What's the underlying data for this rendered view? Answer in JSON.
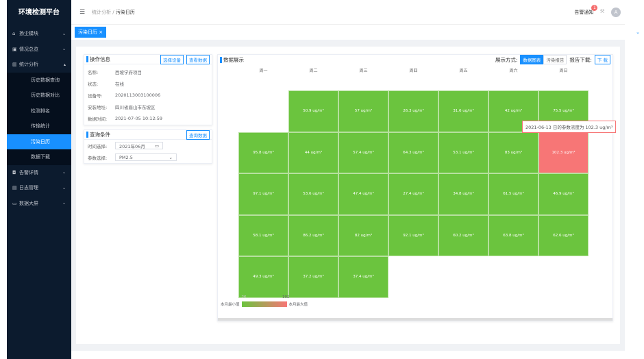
{
  "app": {
    "title": "环境检测平台"
  },
  "sidebar": {
    "items": [
      {
        "label": "扬尘模块",
        "icon": "home-icon"
      },
      {
        "label": "情况总览",
        "icon": "monitor-icon"
      },
      {
        "label": "统计分析",
        "icon": "chart-icon",
        "expanded": true,
        "children": [
          {
            "label": "历史数据查询"
          },
          {
            "label": "历史数据对比"
          },
          {
            "label": "检测排名"
          },
          {
            "label": "传输统计"
          },
          {
            "label": "污染日历",
            "active": true
          },
          {
            "label": "数据下载"
          }
        ]
      },
      {
        "label": "告警详情",
        "icon": "alarm-icon"
      },
      {
        "label": "日志管理",
        "icon": "document-icon"
      },
      {
        "label": "数据大屏",
        "icon": "screen-icon"
      }
    ]
  },
  "header": {
    "breadcrumb": [
      "统计分析",
      "污染日历"
    ],
    "notice": "告警通知",
    "notice_count": "1",
    "avatar": "A"
  },
  "tabs": [
    {
      "label": "污染日历",
      "close": "×"
    }
  ],
  "info": {
    "title": "操作信息",
    "btn_select": "选择设备",
    "btn_view": "查看数据",
    "rows": [
      {
        "k": "名称:",
        "v": "西坡学府项目"
      },
      {
        "k": "状态:",
        "v": "在线"
      },
      {
        "k": "设备号:",
        "v": "2020113003100006"
      },
      {
        "k": "安装地址:",
        "v": "四川省眉山市东坡区"
      },
      {
        "k": "数据时间:",
        "v": "2021-07-05 10:12:59"
      }
    ]
  },
  "query": {
    "title": "查询条件",
    "btn": "查询数据",
    "time_label": "时间选择:",
    "time_value": "2021年06月",
    "param_label": "参数选择:",
    "param_value": "PM2.5"
  },
  "display": {
    "title": "数据展示",
    "mode_label": "展示方式:",
    "mode_chart": "数据图表",
    "mode_report": "污染报告",
    "download_label": "报告下载:",
    "download_btn": "下 载",
    "tooltip": "2021-06-13 日的参数浓度为 102.3 ug/m³"
  },
  "chart_data": {
    "type": "heatmap",
    "title": "",
    "month": "2021-06",
    "unit": "ug/m³",
    "weekdays": [
      "周一",
      "周二",
      "周三",
      "周四",
      "周五",
      "周六",
      "周日"
    ],
    "first_weekday_index": 1,
    "values": [
      50.9,
      57,
      26.3,
      31.6,
      42,
      75.5,
      95.8,
      44,
      57.4,
      64.3,
      53.1,
      83,
      102.3,
      97.1,
      53.6,
      47.4,
      27.4,
      34.8,
      61.5,
      46.9,
      58.1,
      86.2,
      82,
      92.1,
      60.2,
      63.8,
      62.6,
      49.3,
      37.2,
      37.4
    ],
    "highlight_day": 13,
    "legend": {
      "min_label": "本月最小值",
      "max_label": "本月最大值",
      "min": "26",
      "max": "102",
      "colors": [
        "#6bc43e",
        "#f77676"
      ]
    }
  }
}
